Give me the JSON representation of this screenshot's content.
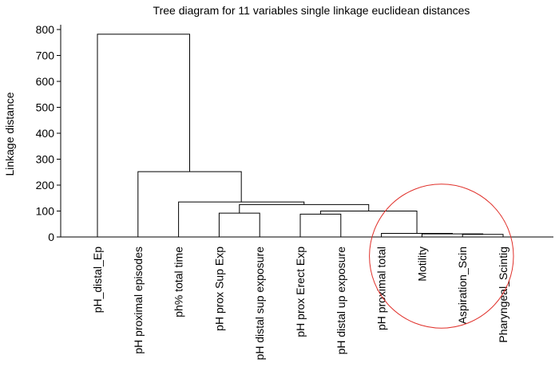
{
  "chart_data": {
    "type": "dendrogram",
    "title": "Tree diagram for 11 variables single linkage euclidean distances",
    "ylabel": "Linkage distance",
    "xlabel": "",
    "ylim": [
      0,
      800
    ],
    "yticks": [
      0,
      100,
      200,
      300,
      400,
      500,
      600,
      700,
      800
    ],
    "leaves": [
      "pH_distal_Ep",
      "pH proximal episodes",
      "ph% total time",
      "pH prox Sup Exp",
      "pH distal sup exposure",
      "pH prox Erect Exp",
      "pH distal up exposure",
      "pH proximal total",
      "Motility",
      "Aspiration_Scin",
      "Pharyngeal_Scintig"
    ],
    "merges": [
      {
        "a": 9,
        "b": 10,
        "height": 10
      },
      {
        "a": 8,
        "b": "m0",
        "height": 12
      },
      {
        "a": 7,
        "b": "m1",
        "height": 14
      },
      {
        "a": 5,
        "b": 6,
        "height": 88
      },
      {
        "a": 3,
        "b": 4,
        "height": 92
      },
      {
        "a": "m3",
        "b": "m2",
        "height": 100
      },
      {
        "a": "m5",
        "b": "m4",
        "height": 125
      },
      {
        "a": 2,
        "b": "m6",
        "height": 135
      },
      {
        "a": 1,
        "b": "m7",
        "height": 252
      },
      {
        "a": 0,
        "b": "m8",
        "height": 782
      }
    ],
    "annotations": [
      {
        "type": "circle",
        "color": "#e0302a",
        "encloses": [
          "pH proximal total",
          "Motility",
          "Aspiration_Scin",
          "Pharyngeal_Scintig"
        ]
      }
    ],
    "grid": false,
    "legend": "none"
  }
}
